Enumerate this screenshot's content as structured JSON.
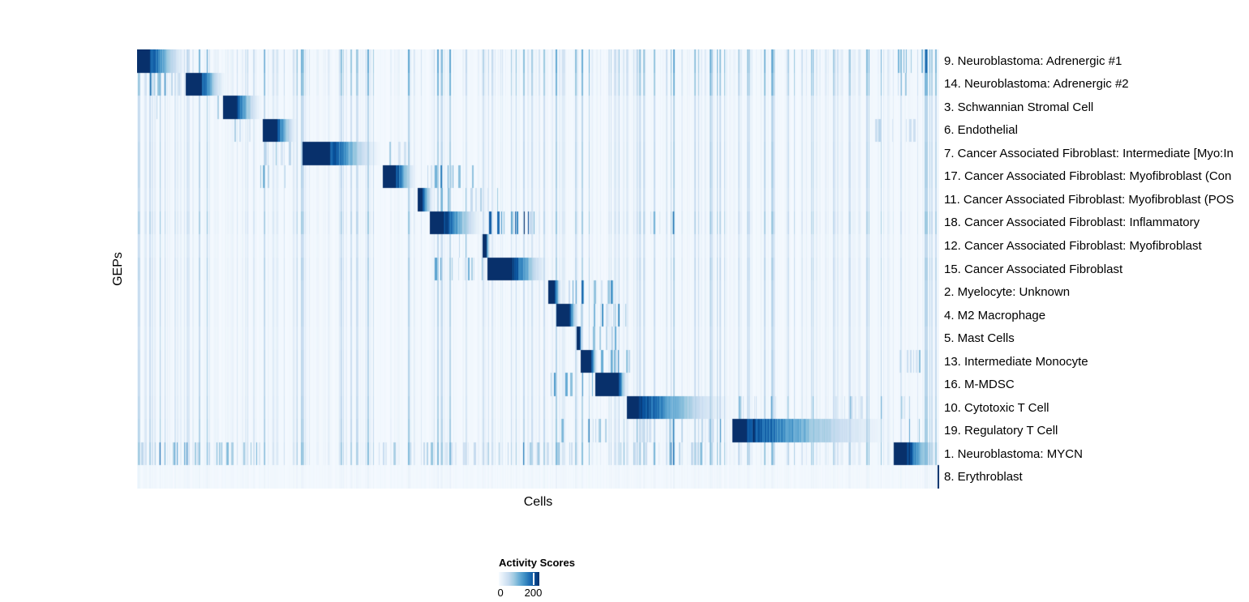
{
  "chart_data": {
    "type": "heatmap",
    "title": "",
    "xlabel": "Cells",
    "ylabel": "GEPs",
    "colormap": {
      "name": "Blues",
      "stops": [
        "#f7fbff",
        "#deebf7",
        "#c6dbef",
        "#9ecae1",
        "#6baed6",
        "#4292c6",
        "#2171b5",
        "#08519c",
        "#08306b"
      ]
    },
    "colorbar": {
      "title": "Activity Scores",
      "min_label": "0",
      "tick_label": "200",
      "tick_fraction": 0.85
    },
    "seed": 42,
    "global_streaks": {
      "count": 330
    },
    "rows": [
      {
        "label": "9. Neuroblastoma: Adrenergic #1",
        "block": {
          "start": 0.0,
          "solid_end": 0.015,
          "end": 0.062
        },
        "noise_gain": 0.9,
        "clusters": [
          [
            0.93,
            0.985,
            0.45,
            0.5
          ]
        ]
      },
      {
        "label": "14. Neuroblastoma: Adrenergic #2",
        "block": {
          "start": 0.06,
          "solid_end": 0.079,
          "end": 0.11
        },
        "noise_gain": 0.8,
        "clusters": [
          [
            0.0,
            0.058,
            0.45,
            0.45
          ],
          [
            0.94,
            0.985,
            0.4,
            0.45
          ]
        ]
      },
      {
        "label": "3. Schwannian Stromal Cell",
        "block": {
          "start": 0.107,
          "solid_end": 0.122,
          "end": 0.155
        },
        "noise_gain": 0.5,
        "clusters": [
          [
            0.0,
            0.105,
            0.25,
            0.3
          ]
        ]
      },
      {
        "label": "6. Endothelial",
        "block": {
          "start": 0.156,
          "solid_end": 0.173,
          "end": 0.2
        },
        "noise_gain": 0.5,
        "clusters": [
          [
            0.108,
            0.154,
            0.3,
            0.35
          ],
          [
            0.92,
            0.99,
            0.3,
            0.3
          ]
        ]
      },
      {
        "label": "7. Cancer Associated Fibroblast: Intermediate [Myo:In",
        "block": {
          "start": 0.206,
          "solid_end": 0.239,
          "end": 0.304
        },
        "noise_gain": 0.55,
        "clusters": [
          [
            0.157,
            0.205,
            0.35,
            0.4
          ],
          [
            0.31,
            0.35,
            0.3,
            0.35
          ]
        ]
      },
      {
        "label": "17. Cancer Associated Fibroblast: Myofibroblast (Con",
        "block": {
          "start": 0.306,
          "solid_end": 0.322,
          "end": 0.348
        },
        "noise_gain": 0.55,
        "clusters": [
          [
            0.15,
            0.21,
            0.3,
            0.45
          ],
          [
            0.35,
            0.425,
            0.35,
            0.5
          ]
        ]
      },
      {
        "label": "11. Cancer Associated Fibroblast: Myofibroblast (POS",
        "block": {
          "start": 0.349,
          "solid_end": 0.355,
          "end": 0.37
        },
        "noise_gain": 0.5,
        "clusters": [
          [
            0.372,
            0.45,
            0.3,
            0.45
          ]
        ]
      },
      {
        "label": "18. Cancer Associated Fibroblast: Inflammatory",
        "block": {
          "start": 0.365,
          "solid_end": 0.382,
          "end": 0.432
        },
        "noise_gain": 0.65,
        "clusters": [
          [
            0.433,
            0.499,
            0.5,
            0.85
          ],
          [
            0.64,
            0.685,
            0.3,
            0.4
          ]
        ]
      },
      {
        "label": "12. Cancer Associated Fibroblast: Myofibroblast",
        "block": {
          "start": 0.4307,
          "solid_end": 0.4348,
          "end": 0.44
        },
        "noise_gain": 0.45,
        "clusters": [
          [
            0.4,
            0.43,
            0.2,
            0.3
          ]
        ]
      },
      {
        "label": "15. Cancer Associated Fibroblast",
        "block": {
          "start": 0.4358,
          "solid_end": 0.468,
          "end": 0.513
        },
        "noise_gain": 0.55,
        "clusters": [
          [
            0.365,
            0.432,
            0.35,
            0.55
          ]
        ]
      },
      {
        "label": "2. Myelocyte: Unknown",
        "block": {
          "start": 0.5126,
          "solid_end": 0.52,
          "end": 0.529
        },
        "noise_gain": 0.5,
        "clusters": [
          [
            0.53,
            0.6,
            0.45,
            0.6
          ]
        ]
      },
      {
        "label": "4. M2 Macrophage",
        "block": {
          "start": 0.5227,
          "solid_end": 0.538,
          "end": 0.55
        },
        "noise_gain": 0.5,
        "clusters": [
          [
            0.552,
            0.61,
            0.45,
            0.6
          ]
        ]
      },
      {
        "label": "5. Mast Cells",
        "block": {
          "start": 0.548,
          "solid_end": 0.5515,
          "end": 0.5545
        },
        "noise_gain": 0.45,
        "clusters": [
          [
            0.556,
            0.6,
            0.3,
            0.4
          ]
        ]
      },
      {
        "label": "13. Intermediate Monocyte",
        "block": {
          "start": 0.553,
          "solid_end": 0.5655,
          "end": 0.574
        },
        "noise_gain": 0.5,
        "clusters": [
          [
            0.576,
            0.615,
            0.4,
            0.5
          ],
          [
            0.943,
            0.978,
            0.5,
            0.45
          ]
        ]
      },
      {
        "label": "16. M-MDSC",
        "block": {
          "start": 0.5712,
          "solid_end": 0.6,
          "end": 0.611
        },
        "noise_gain": 0.5,
        "clusters": [
          [
            0.512,
            0.57,
            0.4,
            0.55
          ]
        ]
      },
      {
        "label": "10. Cytotoxic T Cell",
        "block": {
          "start": 0.6107,
          "solid_end": 0.624,
          "end": 0.742
        },
        "noise_gain": 0.55,
        "clusters": [
          [
            0.745,
            0.99,
            0.22,
            0.3
          ]
        ]
      },
      {
        "label": "19. Regulatory T Cell",
        "block": {
          "start": 0.742,
          "solid_end": 0.757,
          "end": 0.9414
        },
        "noise_gain": 0.6,
        "clusters": [
          [
            0.52,
            0.74,
            0.3,
            0.4
          ],
          [
            0.945,
            0.985,
            0.45,
            0.5
          ]
        ]
      },
      {
        "label": "1. Neuroblastoma: MYCN",
        "block": {
          "start": 0.9424,
          "solid_end": 0.9595,
          "end": 1.0
        },
        "noise_gain": 0.75,
        "clusters": [
          [
            0.0,
            0.17,
            0.5,
            0.45
          ],
          [
            0.3,
            0.55,
            0.3,
            0.35
          ],
          [
            0.6,
            0.72,
            0.35,
            0.4
          ]
        ]
      },
      {
        "label": "8. Erythroblast",
        "block": {
          "start": 0.997,
          "solid_end": 1.0,
          "end": 1.0
        },
        "noise_gain": 0.07,
        "clusters": []
      }
    ]
  }
}
